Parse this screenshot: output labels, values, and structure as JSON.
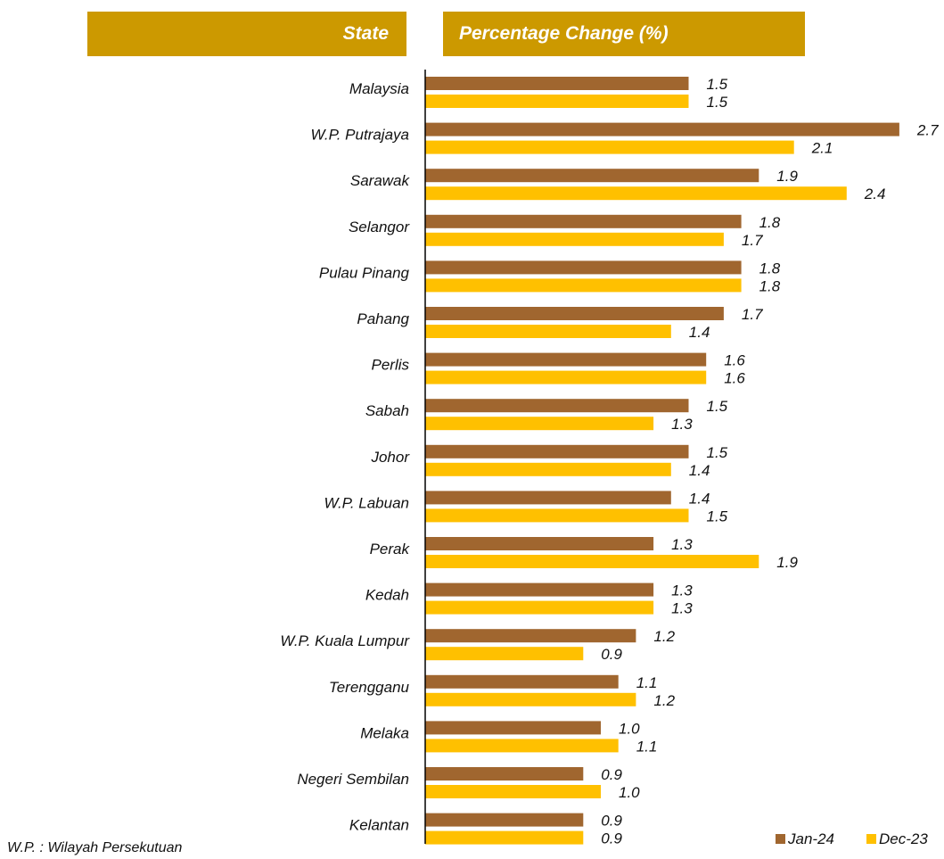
{
  "headers": {
    "state": "State",
    "percentage_change": "Percentage Change (%)"
  },
  "footnote": "W.P. : Wilayah Persekutuan",
  "colors": {
    "header_bg": "#CC9900",
    "header_text": "#FFFFFF",
    "jan24": "#A0662F",
    "dec23": "#FFC000"
  },
  "chart_data": {
    "type": "bar",
    "orientation": "horizontal",
    "title": "",
    "xlabel": "",
    "ylabel": "",
    "xlim": [
      0,
      2.8
    ],
    "grid": false,
    "legend_position": "bottom-right",
    "categories": [
      "Malaysia",
      "W.P. Putrajaya",
      "Sarawak",
      "Selangor",
      "Pulau Pinang",
      "Pahang",
      "Perlis",
      "Sabah",
      "Johor",
      "W.P. Labuan",
      "Perak",
      "Kedah",
      "W.P. Kuala Lumpur",
      "Terengganu",
      "Melaka",
      "Negeri Sembilan",
      "Kelantan"
    ],
    "series": [
      {
        "name": "Jan-24",
        "color": "#A0662F",
        "values": [
          1.5,
          2.7,
          1.9,
          1.8,
          1.8,
          1.7,
          1.6,
          1.5,
          1.5,
          1.4,
          1.3,
          1.3,
          1.2,
          1.1,
          1.0,
          0.9,
          0.9
        ]
      },
      {
        "name": "Dec-23",
        "color": "#FFC000",
        "values": [
          1.5,
          2.1,
          2.4,
          1.7,
          1.8,
          1.4,
          1.6,
          1.3,
          1.4,
          1.5,
          1.9,
          1.3,
          0.9,
          1.2,
          1.1,
          1.0,
          0.9
        ]
      }
    ]
  }
}
